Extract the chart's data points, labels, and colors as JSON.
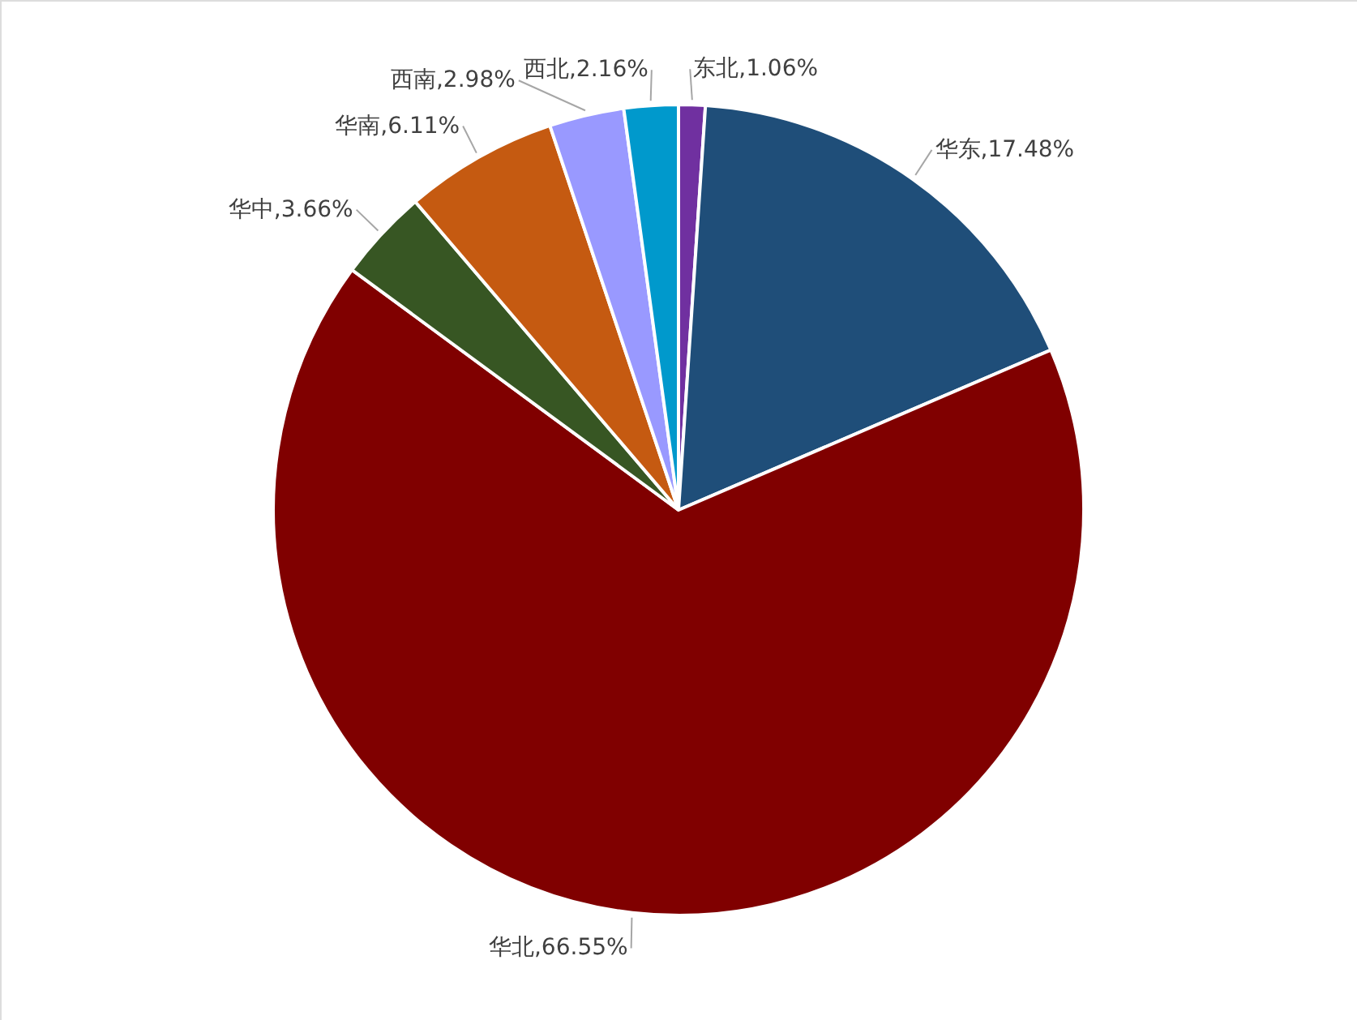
{
  "chart_data": {
    "type": "pie",
    "categories": [
      "东北",
      "华东",
      "华北",
      "华中",
      "华南",
      "西南",
      "西北"
    ],
    "values": [
      1.06,
      17.48,
      66.55,
      3.66,
      6.11,
      2.98,
      2.16
    ],
    "colors": [
      "#7030a0",
      "#1f4e79",
      "#800000",
      "#375623",
      "#c55a11",
      "#9999ff",
      "#0099cc"
    ],
    "value_labels": [
      "1.06%",
      "17.48%",
      "66.55%",
      "3.66%",
      "6.11%",
      "2.98%",
      "2.16%"
    ]
  }
}
